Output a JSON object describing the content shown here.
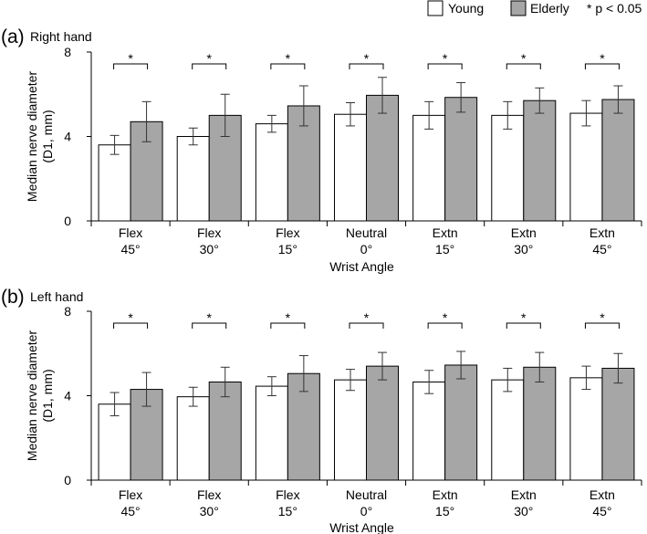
{
  "legend": {
    "young": "Young",
    "elderly": "Elderly",
    "significance": "* p < 0.05"
  },
  "colors": {
    "young_fill": "#ffffff",
    "elderly_fill": "#a6a6a6",
    "stroke": "#000000",
    "error_bar": "#333333"
  },
  "chart_data": [
    {
      "type": "bar",
      "panel_label": "(a)",
      "title": "Right hand",
      "xlabel": "Wrist Angle",
      "ylabel": "Median nerve diameter",
      "ylabel_line2": "(D1, mm)",
      "ylim": [
        0,
        8
      ],
      "yticks": [
        "0",
        "4",
        "8"
      ],
      "categories": [
        {
          "line1": "Flex",
          "line2": "45°"
        },
        {
          "line1": "Flex",
          "line2": "30°"
        },
        {
          "line1": "Flex",
          "line2": "15°"
        },
        {
          "line1": "Neutral",
          "line2": "0°"
        },
        {
          "line1": "Extn",
          "line2": "15°"
        },
        {
          "line1": "Extn",
          "line2": "30°"
        },
        {
          "line1": "Extn",
          "line2": "45°"
        }
      ],
      "series": [
        {
          "name": "Young",
          "values": [
            3.6,
            4.0,
            4.6,
            5.05,
            5.0,
            5.0,
            5.1
          ],
          "errors": [
            0.45,
            0.4,
            0.4,
            0.55,
            0.65,
            0.65,
            0.6
          ]
        },
        {
          "name": "Elderly",
          "values": [
            4.7,
            5.0,
            5.45,
            5.95,
            5.85,
            5.7,
            5.75
          ],
          "errors": [
            0.95,
            1.0,
            0.95,
            0.85,
            0.7,
            0.6,
            0.65
          ]
        }
      ],
      "significance_marker": "*"
    },
    {
      "type": "bar",
      "panel_label": "(b)",
      "title": "Left hand",
      "xlabel": "Wrist Angle",
      "ylabel": "Median nerve diameter",
      "ylabel_line2": "(D1, mm)",
      "ylim": [
        0,
        8
      ],
      "yticks": [
        "0",
        "4",
        "8"
      ],
      "categories": [
        {
          "line1": "Flex",
          "line2": "45°"
        },
        {
          "line1": "Flex",
          "line2": "30°"
        },
        {
          "line1": "Flex",
          "line2": "15°"
        },
        {
          "line1": "Neutral",
          "line2": "0°"
        },
        {
          "line1": "Extn",
          "line2": "15°"
        },
        {
          "line1": "Extn",
          "line2": "30°"
        },
        {
          "line1": "Extn",
          "line2": "45°"
        }
      ],
      "series": [
        {
          "name": "Young",
          "values": [
            3.6,
            3.95,
            4.45,
            4.75,
            4.65,
            4.75,
            4.85
          ],
          "errors": [
            0.55,
            0.45,
            0.45,
            0.5,
            0.55,
            0.55,
            0.55
          ]
        },
        {
          "name": "Elderly",
          "values": [
            4.3,
            4.65,
            5.05,
            5.4,
            5.45,
            5.35,
            5.3
          ],
          "errors": [
            0.8,
            0.7,
            0.85,
            0.65,
            0.65,
            0.7,
            0.7
          ]
        }
      ],
      "significance_marker": "*"
    }
  ]
}
